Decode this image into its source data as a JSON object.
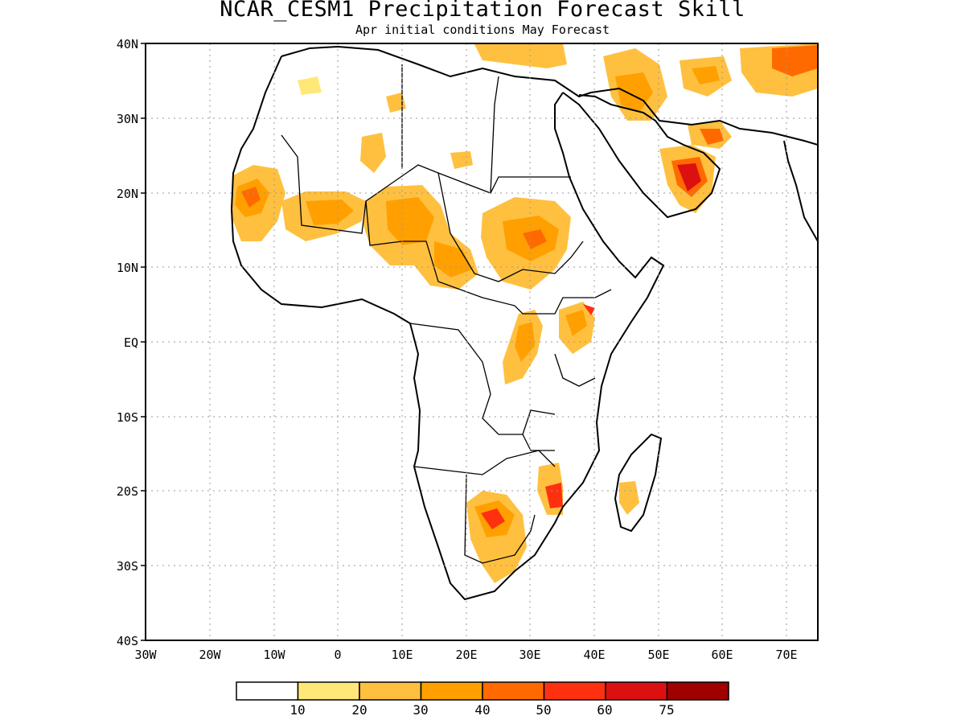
{
  "title": "NCAR_CESM1 Precipitation Forecast Skill",
  "subtitle": "Apr initial conditions  May Forecast",
  "lat_labels": [
    "40N",
    "30N",
    "20N",
    "10N",
    "EQ",
    "10S",
    "20S",
    "30S",
    "40S"
  ],
  "lon_labels": [
    "30W",
    "20W",
    "10W",
    "0",
    "10E",
    "20E",
    "30E",
    "40E",
    "50E",
    "60E",
    "70E"
  ],
  "colorbar": {
    "colors": [
      "#ffffff",
      "#ffe878",
      "#ffc040",
      "#ffa000",
      "#ff6a00",
      "#ff3010",
      "#dc1010",
      "#a00000"
    ],
    "labels": [
      "10",
      "20",
      "30",
      "40",
      "50",
      "60",
      "75"
    ]
  }
}
